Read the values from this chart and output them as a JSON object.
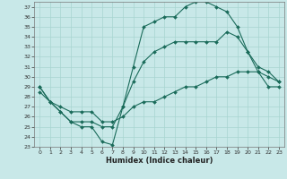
{
  "xlabel": "Humidex (Indice chaleur)",
  "bg_color": "#c8e8e8",
  "line_color": "#1a6b5a",
  "grid_color": "#a8d4d0",
  "xlim": [
    -0.5,
    23.5
  ],
  "ylim": [
    23,
    37.5
  ],
  "yticks": [
    23,
    24,
    25,
    26,
    27,
    28,
    29,
    30,
    31,
    32,
    33,
    34,
    35,
    36,
    37
  ],
  "xticks": [
    0,
    1,
    2,
    3,
    4,
    5,
    6,
    7,
    8,
    9,
    10,
    11,
    12,
    13,
    14,
    15,
    16,
    17,
    18,
    19,
    20,
    21,
    22,
    23
  ],
  "line1_x": [
    0,
    1,
    2,
    3,
    4,
    5,
    6,
    7,
    8,
    9,
    10,
    11,
    12,
    13,
    14,
    15,
    16,
    17,
    18,
    19,
    20,
    21,
    22,
    23
  ],
  "line1_y": [
    29.0,
    27.5,
    26.5,
    25.5,
    25.0,
    25.0,
    23.5,
    23.2,
    27.0,
    31.0,
    35.0,
    35.5,
    36.0,
    36.0,
    37.0,
    37.5,
    37.5,
    37.0,
    36.5,
    35.0,
    32.5,
    31.0,
    30.5,
    29.5
  ],
  "line2_x": [
    0,
    1,
    2,
    3,
    4,
    5,
    6,
    7,
    8,
    9,
    10,
    11,
    12,
    13,
    14,
    15,
    16,
    17,
    18,
    19,
    20,
    21,
    22,
    23
  ],
  "line2_y": [
    29.0,
    27.5,
    26.5,
    25.5,
    25.5,
    25.5,
    25.0,
    25.0,
    27.0,
    29.5,
    31.5,
    32.5,
    33.0,
    33.5,
    33.5,
    33.5,
    33.5,
    33.5,
    34.5,
    34.0,
    32.5,
    30.5,
    29.0,
    29.0
  ],
  "line3_x": [
    0,
    1,
    2,
    3,
    4,
    5,
    6,
    7,
    8,
    9,
    10,
    11,
    12,
    13,
    14,
    15,
    16,
    17,
    18,
    19,
    20,
    21,
    22,
    23
  ],
  "line3_y": [
    28.5,
    27.5,
    27.0,
    26.5,
    26.5,
    26.5,
    25.5,
    25.5,
    26.0,
    27.0,
    27.5,
    27.5,
    28.0,
    28.5,
    29.0,
    29.0,
    29.5,
    30.0,
    30.0,
    30.5,
    30.5,
    30.5,
    30.0,
    29.5
  ],
  "xlabel_fontsize": 6,
  "tick_fontsize": 4.5
}
